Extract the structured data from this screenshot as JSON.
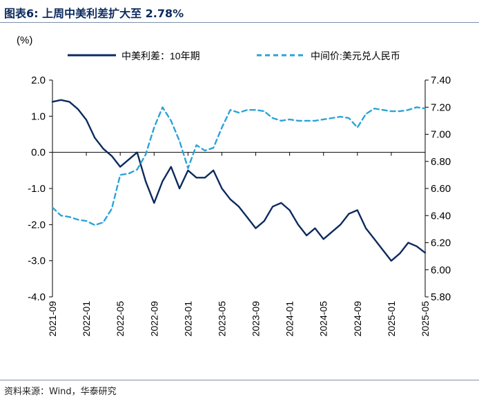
{
  "title": "图表6:  上周中美利差扩大至 2.78%",
  "source": "资料来源：Wind，华泰研究",
  "chart_data": {
    "type": "line",
    "left_unit": "(%)",
    "ylim_left": [
      -4.0,
      2.0
    ],
    "ylim_right": [
      5.8,
      7.4
    ],
    "left_ticks": [
      "2.0",
      "1.0",
      "0.0",
      "-1.0",
      "-2.0",
      "-3.0",
      "-4.0"
    ],
    "right_ticks": [
      "7.40",
      "7.20",
      "7.00",
      "6.80",
      "6.60",
      "6.40",
      "6.20",
      "6.00",
      "5.80"
    ],
    "x_ticks": [
      "2021-09",
      "2022-01",
      "2022-05",
      "2022-09",
      "2023-01",
      "2023-05",
      "2023-09",
      "2024-01",
      "2024-05",
      "2024-09",
      "2025-01",
      "2025-05"
    ],
    "series": [
      {
        "name": "中美利差：10年期",
        "axis": "left",
        "color": "#0c2a5c",
        "style": "solid",
        "x": [
          "2021-09",
          "2021-10",
          "2021-11",
          "2021-12",
          "2022-01",
          "2022-02",
          "2022-03",
          "2022-04",
          "2022-05",
          "2022-06",
          "2022-07",
          "2022-08",
          "2022-09",
          "2022-10",
          "2022-11",
          "2022-12",
          "2023-01",
          "2023-02",
          "2023-03",
          "2023-04",
          "2023-05",
          "2023-06",
          "2023-07",
          "2023-08",
          "2023-09",
          "2023-10",
          "2023-11",
          "2023-12",
          "2024-01",
          "2024-02",
          "2024-03",
          "2024-04",
          "2024-05",
          "2024-06",
          "2024-07",
          "2024-08",
          "2024-09",
          "2024-10",
          "2024-11",
          "2024-12",
          "2025-01",
          "2025-02",
          "2025-03",
          "2025-04",
          "2025-05"
        ],
        "values": [
          1.4,
          1.45,
          1.4,
          1.2,
          0.9,
          0.4,
          0.1,
          -0.1,
          -0.4,
          -0.2,
          0.0,
          -0.8,
          -1.4,
          -0.8,
          -0.4,
          -1.0,
          -0.5,
          -0.7,
          -0.7,
          -0.5,
          -1.0,
          -1.3,
          -1.5,
          -1.8,
          -2.1,
          -1.9,
          -1.5,
          -1.4,
          -1.6,
          -2.0,
          -2.3,
          -2.1,
          -2.4,
          -2.2,
          -2.0,
          -1.7,
          -1.6,
          -2.1,
          -2.4,
          -2.7,
          -3.0,
          -2.8,
          -2.5,
          -2.6,
          -2.78
        ]
      },
      {
        "name": "中间价:美元兑人民币",
        "axis": "right",
        "color": "#2aa3d8",
        "style": "dashed",
        "x": [
          "2021-09",
          "2021-10",
          "2021-11",
          "2021-12",
          "2022-01",
          "2022-02",
          "2022-03",
          "2022-04",
          "2022-05",
          "2022-06",
          "2022-07",
          "2022-08",
          "2022-09",
          "2022-10",
          "2022-11",
          "2022-12",
          "2023-01",
          "2023-02",
          "2023-03",
          "2023-04",
          "2023-05",
          "2023-06",
          "2023-07",
          "2023-08",
          "2023-09",
          "2023-10",
          "2023-11",
          "2023-12",
          "2024-01",
          "2024-02",
          "2024-03",
          "2024-04",
          "2024-05",
          "2024-06",
          "2024-07",
          "2024-08",
          "2024-09",
          "2024-10",
          "2024-11",
          "2024-12",
          "2025-01",
          "2025-02",
          "2025-03",
          "2025-04",
          "2025-05"
        ],
        "values": [
          6.46,
          6.4,
          6.39,
          6.37,
          6.36,
          6.33,
          6.35,
          6.45,
          6.7,
          6.71,
          6.74,
          6.85,
          7.05,
          7.2,
          7.1,
          6.95,
          6.75,
          6.92,
          6.88,
          6.9,
          7.05,
          7.18,
          7.16,
          7.18,
          7.18,
          7.17,
          7.12,
          7.1,
          7.11,
          7.1,
          7.1,
          7.1,
          7.11,
          7.12,
          7.13,
          7.12,
          7.05,
          7.15,
          7.19,
          7.18,
          7.17,
          7.17,
          7.18,
          7.2,
          7.19
        ]
      }
    ]
  }
}
